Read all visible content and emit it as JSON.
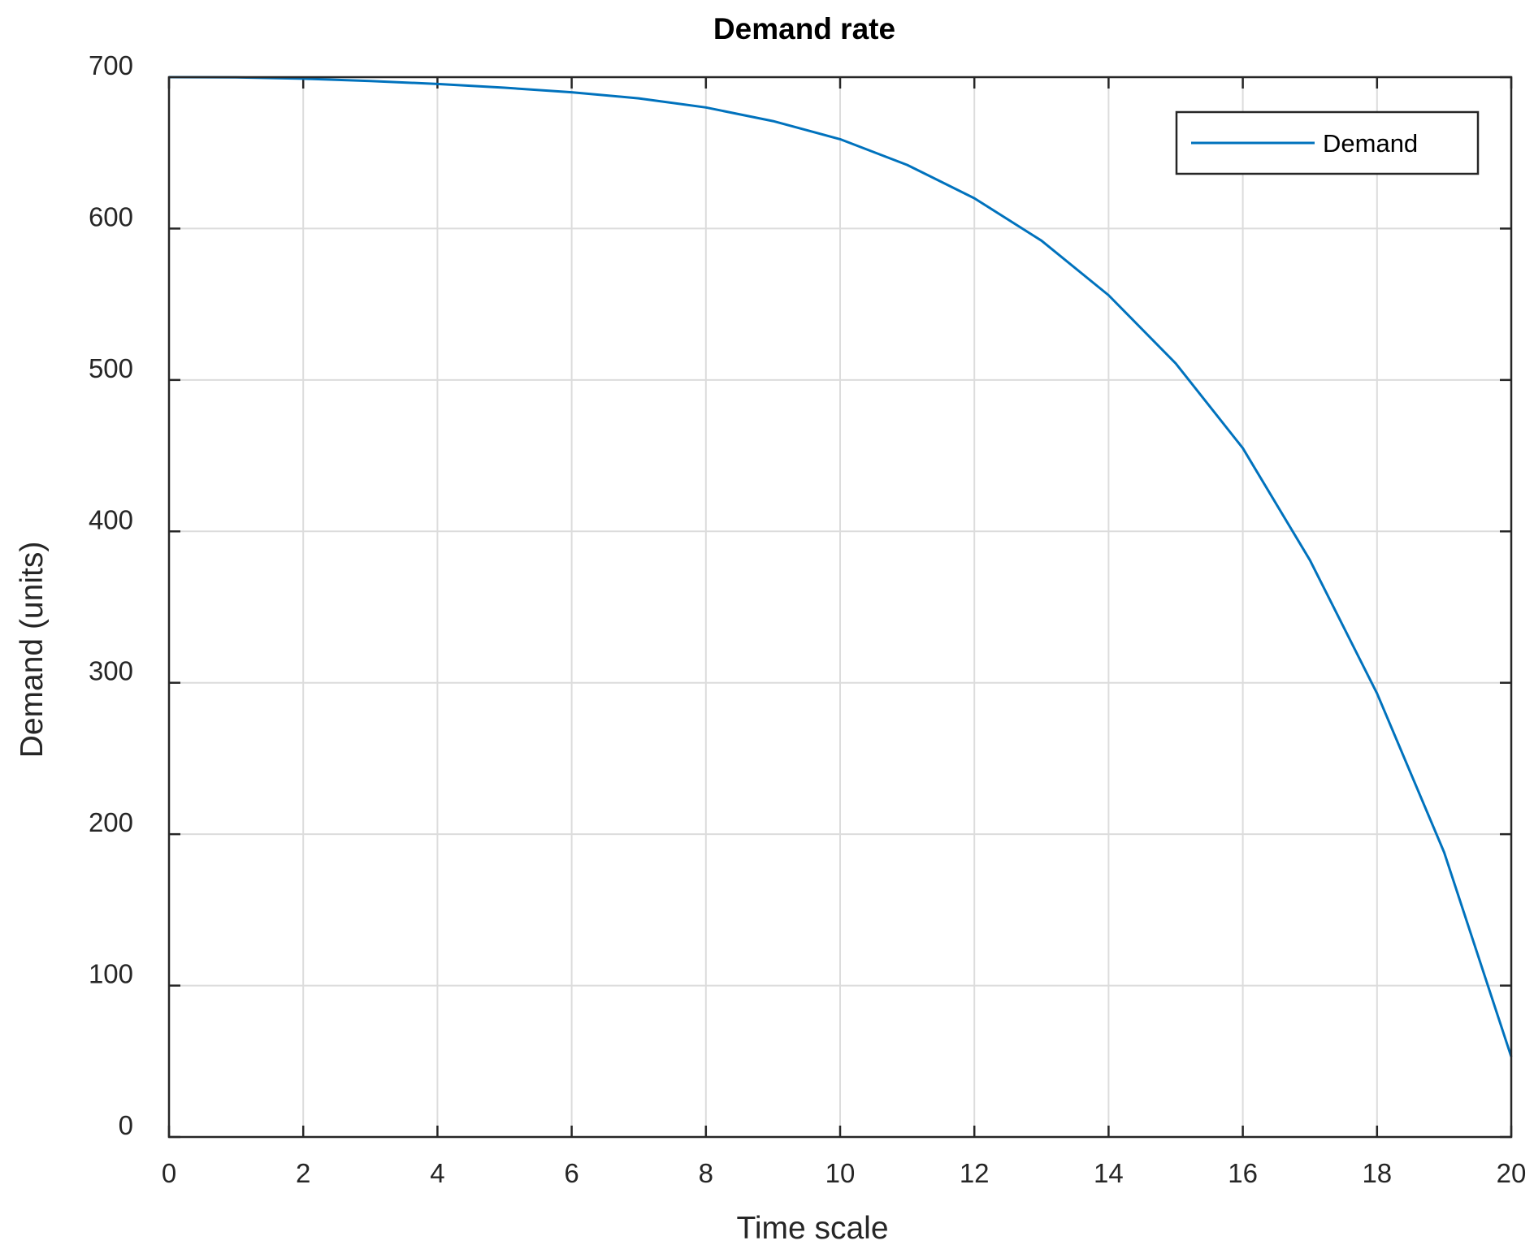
{
  "chart_data": {
    "type": "line",
    "title": "Demand rate",
    "xlabel": "Time scale",
    "ylabel": "Demand (units)",
    "xlim": [
      0,
      20
    ],
    "ylim": [
      0,
      700
    ],
    "xticks": [
      0,
      2,
      4,
      6,
      8,
      10,
      12,
      14,
      16,
      18,
      20
    ],
    "yticks": [
      0,
      100,
      200,
      300,
      400,
      500,
      600,
      700
    ],
    "grid": true,
    "legend_position": "top-right",
    "series": [
      {
        "name": "Demand",
        "color": "#0072BD",
        "x": [
          0,
          1,
          2,
          3,
          4,
          5,
          6,
          7,
          8,
          9,
          10,
          11,
          12,
          13,
          14,
          15,
          16,
          17,
          18,
          19,
          20
        ],
        "y": [
          700,
          699.9,
          699,
          697.5,
          695.5,
          693,
          690,
          686,
          680,
          671,
          659,
          642,
          620,
          592,
          556,
          511,
          455,
          381,
          293,
          188,
          53
        ]
      }
    ]
  }
}
